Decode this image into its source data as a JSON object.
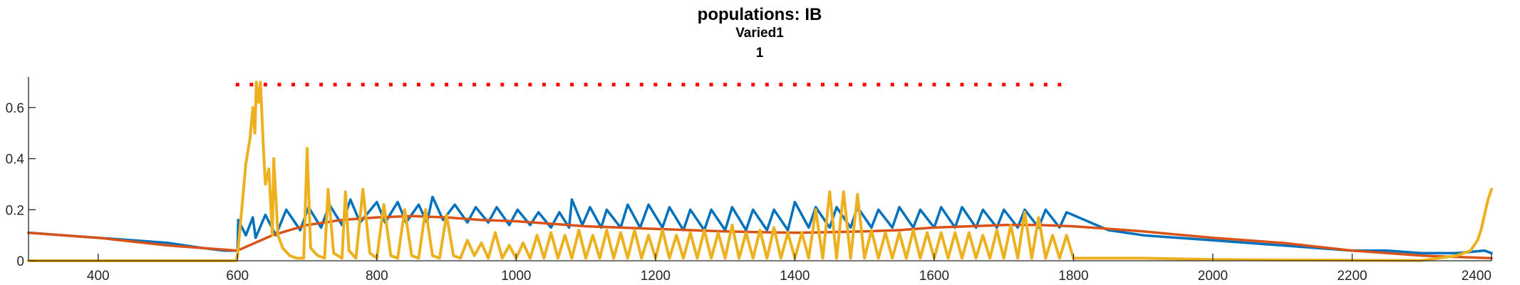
{
  "chart_data": {
    "type": "line",
    "title": "populations: IB",
    "subtitle_lines": [
      "Varied1",
      "1"
    ],
    "xlabel": "",
    "ylabel": "",
    "xlim": [
      300,
      2400
    ],
    "ylim": [
      0,
      0.72
    ],
    "x_ticks": [
      400,
      600,
      800,
      1000,
      1200,
      1400,
      1600,
      1800,
      2000,
      2200,
      2400
    ],
    "x_tick_labels": [
      "400",
      "600",
      "800",
      "1000",
      "1200",
      "1400",
      "1600",
      "1800",
      "2000",
      "2200",
      "2400"
    ],
    "y_ticks": [
      0,
      0.2,
      0.4,
      0.6
    ],
    "y_tick_labels": [
      "0",
      "0.2",
      "0.4",
      "0.6"
    ],
    "grid": false,
    "colors": {
      "blue": "#0072BD",
      "orange": "#D95319",
      "yellow": "#EDB120",
      "red_dots": "#FF0000"
    },
    "stim_marker": {
      "x": [
        600,
        620,
        640,
        660,
        680,
        700,
        720,
        740,
        760,
        780,
        800,
        820,
        840,
        860,
        880,
        900,
        920,
        940,
        960,
        980,
        1000,
        1020,
        1040,
        1060,
        1080,
        1100,
        1120,
        1140,
        1160,
        1180,
        1200,
        1220,
        1240,
        1260,
        1280,
        1300,
        1320,
        1340,
        1360,
        1380,
        1400,
        1420,
        1440,
        1460,
        1480,
        1500,
        1520,
        1540,
        1560,
        1580,
        1600,
        1620,
        1640,
        1660,
        1680,
        1700,
        1720,
        1740,
        1760,
        1780
      ],
      "y": 0.69
    },
    "series": [
      {
        "key": "blue",
        "x": [
          300,
          350,
          400,
          450,
          500,
          550,
          580,
          600,
          601,
          612,
          622,
          626,
          640,
          655,
          670,
          690,
          702,
          720,
          732,
          750,
          762,
          776,
          800,
          812,
          830,
          842,
          860,
          872,
          880,
          895,
          912,
          930,
          942,
          960,
          972,
          990,
          1002,
          1020,
          1032,
          1050,
          1062,
          1076,
          1080,
          1095,
          1106,
          1122,
          1130,
          1150,
          1160,
          1178,
          1190,
          1210,
          1220,
          1240,
          1250,
          1270,
          1280,
          1300,
          1310,
          1330,
          1340,
          1360,
          1370,
          1390,
          1400,
          1420,
          1430,
          1450,
          1460,
          1480,
          1490,
          1510,
          1520,
          1540,
          1550,
          1570,
          1580,
          1600,
          1610,
          1630,
          1640,
          1660,
          1670,
          1690,
          1700,
          1720,
          1730,
          1750,
          1760,
          1780,
          1790,
          1850,
          1900,
          1950,
          2000,
          2050,
          2100,
          2150,
          2200,
          2250,
          2300,
          2350,
          2390,
          2400
        ],
        "y": [
          0.11,
          0.1,
          0.09,
          0.08,
          0.07,
          0.05,
          0.04,
          0.04,
          0.16,
          0.1,
          0.17,
          0.09,
          0.18,
          0.1,
          0.2,
          0.12,
          0.21,
          0.13,
          0.22,
          0.14,
          0.24,
          0.15,
          0.23,
          0.15,
          0.23,
          0.15,
          0.22,
          0.15,
          0.25,
          0.16,
          0.22,
          0.15,
          0.21,
          0.15,
          0.21,
          0.14,
          0.2,
          0.14,
          0.19,
          0.13,
          0.19,
          0.13,
          0.24,
          0.14,
          0.21,
          0.13,
          0.2,
          0.13,
          0.22,
          0.13,
          0.22,
          0.13,
          0.21,
          0.12,
          0.2,
          0.12,
          0.2,
          0.12,
          0.21,
          0.12,
          0.2,
          0.12,
          0.2,
          0.12,
          0.23,
          0.13,
          0.21,
          0.13,
          0.21,
          0.13,
          0.21,
          0.13,
          0.2,
          0.13,
          0.21,
          0.13,
          0.2,
          0.13,
          0.21,
          0.13,
          0.21,
          0.13,
          0.2,
          0.13,
          0.2,
          0.13,
          0.2,
          0.13,
          0.2,
          0.13,
          0.19,
          0.12,
          0.1,
          0.09,
          0.08,
          0.07,
          0.06,
          0.05,
          0.04,
          0.04,
          0.03,
          0.03,
          0.04,
          0.03
        ]
      },
      {
        "key": "orange",
        "x": [
          300,
          400,
          500,
          600,
          650,
          700,
          750,
          800,
          850,
          900,
          950,
          1000,
          1050,
          1100,
          1150,
          1200,
          1250,
          1300,
          1350,
          1400,
          1450,
          1500,
          1550,
          1600,
          1650,
          1700,
          1750,
          1800,
          1900,
          2000,
          2100,
          2200,
          2300,
          2400
        ],
        "y": [
          0.11,
          0.09,
          0.06,
          0.04,
          0.1,
          0.14,
          0.16,
          0.17,
          0.175,
          0.17,
          0.16,
          0.155,
          0.145,
          0.135,
          0.13,
          0.125,
          0.12,
          0.115,
          0.112,
          0.11,
          0.112,
          0.115,
          0.12,
          0.13,
          0.135,
          0.14,
          0.14,
          0.135,
          0.115,
          0.09,
          0.07,
          0.04,
          0.02,
          0.01
        ]
      },
      {
        "key": "yellow",
        "x": [
          300,
          598,
          600,
          606,
          612,
          618,
          622,
          625,
          627,
          630,
          633,
          637,
          640,
          645,
          650,
          652,
          658,
          665,
          675,
          685,
          695,
          700,
          705,
          715,
          725,
          730,
          738,
          750,
          755,
          760,
          770,
          780,
          790,
          800,
          810,
          820,
          830,
          840,
          850,
          860,
          870,
          880,
          890,
          900,
          910,
          920,
          930,
          940,
          950,
          960,
          970,
          980,
          990,
          1000,
          1010,
          1020,
          1030,
          1040,
          1050,
          1060,
          1070,
          1080,
          1090,
          1100,
          1110,
          1120,
          1130,
          1140,
          1150,
          1160,
          1170,
          1180,
          1190,
          1200,
          1210,
          1220,
          1230,
          1240,
          1250,
          1260,
          1270,
          1280,
          1290,
          1300,
          1310,
          1320,
          1330,
          1340,
          1350,
          1360,
          1370,
          1380,
          1390,
          1400,
          1410,
          1420,
          1430,
          1440,
          1450,
          1460,
          1470,
          1480,
          1490,
          1500,
          1510,
          1520,
          1530,
          1540,
          1550,
          1560,
          1570,
          1580,
          1590,
          1600,
          1610,
          1620,
          1630,
          1640,
          1650,
          1660,
          1670,
          1680,
          1690,
          1700,
          1710,
          1720,
          1730,
          1740,
          1750,
          1760,
          1770,
          1780,
          1790,
          1800,
          1900,
          2000,
          2100,
          2200,
          2300,
          2350,
          2370,
          2380,
          2385,
          2390,
          2395,
          2400
        ],
        "y": [
          0,
          0,
          0.02,
          0.2,
          0.38,
          0.48,
          0.6,
          0.5,
          0.7,
          0.62,
          0.7,
          0.45,
          0.3,
          0.36,
          0.1,
          0.4,
          0.1,
          0.05,
          0.02,
          0.01,
          0.01,
          0.44,
          0.05,
          0.02,
          0.01,
          0.28,
          0.03,
          0.01,
          0.27,
          0.04,
          0.01,
          0.28,
          0.03,
          0.01,
          0.22,
          0.02,
          0.01,
          0.2,
          0.02,
          0.01,
          0.2,
          0.02,
          0.01,
          0.18,
          0.02,
          0.01,
          0.08,
          0.02,
          0.07,
          0.01,
          0.11,
          0.01,
          0.06,
          0.01,
          0.07,
          0.01,
          0.1,
          0.01,
          0.11,
          0.01,
          0.1,
          0.01,
          0.12,
          0.01,
          0.1,
          0.01,
          0.12,
          0.01,
          0.11,
          0.01,
          0.12,
          0.01,
          0.1,
          0.01,
          0.12,
          0.01,
          0.1,
          0.01,
          0.11,
          0.01,
          0.12,
          0.01,
          0.11,
          0.01,
          0.14,
          0.01,
          0.11,
          0.01,
          0.12,
          0.01,
          0.13,
          0.01,
          0.11,
          0.01,
          0.11,
          0.01,
          0.2,
          0.01,
          0.27,
          0.01,
          0.27,
          0.01,
          0.26,
          0.01,
          0.12,
          0.01,
          0.11,
          0.01,
          0.11,
          0.01,
          0.12,
          0.01,
          0.11,
          0.01,
          0.11,
          0.01,
          0.11,
          0.01,
          0.11,
          0.01,
          0.1,
          0.01,
          0.12,
          0.01,
          0.14,
          0.01,
          0.19,
          0.01,
          0.17,
          0.01,
          0.1,
          0.01,
          0.1,
          0.01,
          0.01,
          0.005,
          0.003,
          0.002,
          0.001,
          0.02,
          0.04,
          0.08,
          0.12,
          0.18,
          0.24,
          0.28
        ]
      }
    ]
  }
}
